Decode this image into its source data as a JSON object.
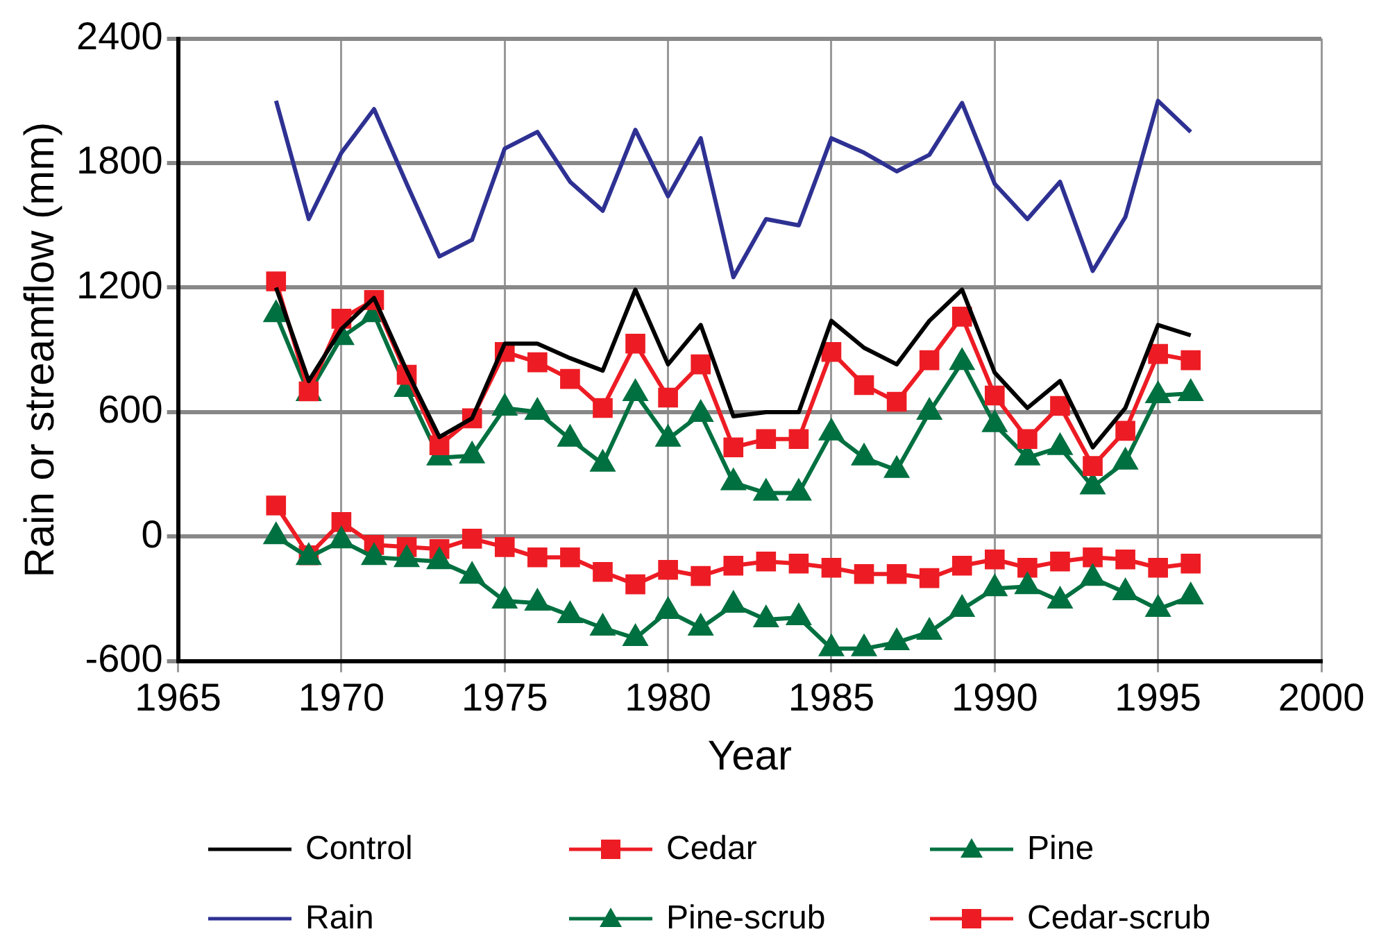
{
  "chart_data": {
    "type": "line",
    "xlabel": "Year",
    "ylabel": "Rain or streamflow (mm)",
    "x": [
      1968,
      1969,
      1970,
      1971,
      1972,
      1973,
      1974,
      1975,
      1976,
      1977,
      1978,
      1979,
      1980,
      1981,
      1982,
      1983,
      1984,
      1985,
      1986,
      1987,
      1988,
      1989,
      1990,
      1991,
      1992,
      1993,
      1994,
      1995,
      1996
    ],
    "xlim": [
      1965,
      2000
    ],
    "xticks": [
      1965,
      1970,
      1975,
      1980,
      1985,
      1990,
      1995,
      2000
    ],
    "ylim": [
      -600,
      2400
    ],
    "yticks": [
      -600,
      0,
      600,
      1200,
      1800,
      2400
    ],
    "grid": true,
    "legend": "bottom",
    "series": [
      {
        "name": "Control",
        "color": "#000000",
        "marker": "none",
        "values": [
          1200,
          750,
          1000,
          1150,
          800,
          480,
          570,
          930,
          930,
          860,
          800,
          1190,
          830,
          1020,
          580,
          600,
          600,
          1040,
          910,
          830,
          1040,
          1190,
          790,
          620,
          750,
          430,
          620,
          1020,
          970
        ]
      },
      {
        "name": "Cedar",
        "color": "#ed1c24",
        "marker": "square",
        "values": [
          1230,
          700,
          1050,
          1140,
          780,
          440,
          570,
          890,
          840,
          760,
          620,
          930,
          670,
          830,
          430,
          470,
          470,
          890,
          730,
          650,
          850,
          1060,
          680,
          470,
          630,
          340,
          510,
          880,
          850
        ]
      },
      {
        "name": "Pine",
        "color": "#007040",
        "marker": "triangle",
        "values": [
          1070,
          690,
          960,
          1070,
          710,
          380,
          390,
          620,
          600,
          470,
          350,
          690,
          470,
          590,
          260,
          210,
          210,
          500,
          380,
          320,
          600,
          840,
          540,
          380,
          430,
          240,
          360,
          680,
          690
        ]
      },
      {
        "name": "Rain",
        "color": "#2e3192",
        "marker": "none",
        "values": [
          2100,
          1530,
          1850,
          2060,
          1700,
          1350,
          1430,
          1870,
          1950,
          1710,
          1570,
          1960,
          1640,
          1920,
          1250,
          1530,
          1500,
          1920,
          1850,
          1760,
          1840,
          2090,
          1700,
          1530,
          1710,
          1280,
          1540,
          2100,
          1950
        ]
      },
      {
        "name": "Pine-scrub",
        "color": "#007040",
        "marker": "triangle",
        "values": [
          0,
          -100,
          -20,
          -100,
          -110,
          -120,
          -190,
          -310,
          -320,
          -380,
          -440,
          -490,
          -360,
          -440,
          -330,
          -400,
          -390,
          -540,
          -540,
          -510,
          -460,
          -350,
          -250,
          -240,
          -310,
          -200,
          -270,
          -350,
          -290
        ]
      },
      {
        "name": "Cedar-scrub",
        "color": "#ed1c24",
        "marker": "square",
        "values": [
          150,
          -90,
          70,
          -40,
          -50,
          -60,
          -10,
          -50,
          -100,
          -100,
          -170,
          -230,
          -160,
          -190,
          -140,
          -120,
          -130,
          -150,
          -180,
          -180,
          -200,
          -140,
          -110,
          -150,
          -120,
          -100,
          -110,
          -150,
          -130
        ]
      }
    ]
  }
}
